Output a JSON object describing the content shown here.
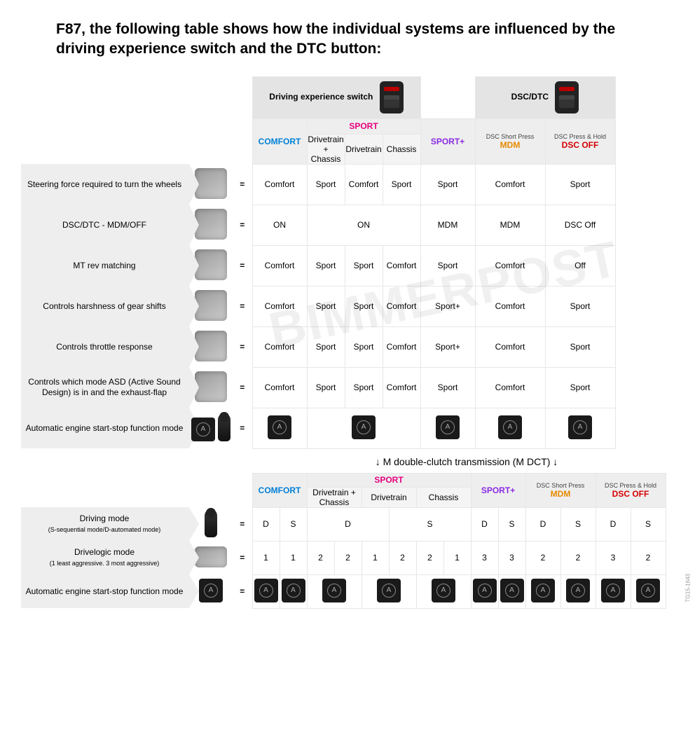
{
  "title": "F87, the following table shows how the individual systems are influenced by the driving experience switch and the DTC button:",
  "watermark": "BIMMERPOST",
  "sidecode": "TG15-1643",
  "dct_divider": "↓ M double-clutch transmission (M DCT) ↓",
  "header": {
    "driving_experience": "Driving experience switch",
    "dsc_dtc": "DSC/DTC",
    "comfort": "COMFORT",
    "sport": "SPORT",
    "sportplus": "SPORT+",
    "dsc_short_sup": "DSC Short Press",
    "mdm": "MDM",
    "dsc_hold_sup": "DSC Press & Hold",
    "dscoff": "DSC OFF",
    "sub_drivetrain_chassis": "Drivetrain + Chassis",
    "sub_drivetrain": "Drivetrain",
    "sub_chassis": "Chassis"
  },
  "rows": [
    {
      "label": "Steering force required to turn the wheels",
      "cells": [
        "Comfort",
        "Sport",
        "Comfort",
        "Sport",
        "Sport",
        "Comfort",
        "Sport"
      ]
    },
    {
      "label": "DSC/DTC - MDM/OFF",
      "cells": [
        "ON",
        "ON",
        "",
        "",
        "MDM",
        "MDM",
        "DSC Off"
      ],
      "merge_sport": true
    },
    {
      "label": "MT rev matching",
      "cells": [
        "Comfort",
        "Sport",
        "Sport",
        "Comfort",
        "Sport",
        "Comfort",
        "Off"
      ]
    },
    {
      "label": "Controls harshness of gear shifts",
      "cells": [
        "Comfort",
        "Sport",
        "Sport",
        "Comfort",
        "Sport+",
        "Comfort",
        "Sport"
      ]
    },
    {
      "label": "Controls throttle response",
      "cells": [
        "Comfort",
        "Sport",
        "Sport",
        "Comfort",
        "Sport+",
        "Comfort",
        "Sport"
      ]
    },
    {
      "label": "Controls which mode ASD (Active Sound Design) is in and the exhaust-flap",
      "cells": [
        "Comfort",
        "Sport",
        "Sport",
        "Comfort",
        "Sport",
        "Comfort",
        "Sport"
      ]
    },
    {
      "label": "Automatic engine start-stop function mode",
      "icons": true
    }
  ],
  "dct_rows": [
    {
      "label": "Driving mode",
      "sublabel": "(S-sequential mode/D-automated mode)",
      "pairs": [
        [
          "D",
          "S"
        ],
        [
          "D",
          ""
        ],
        [
          "",
          "S"
        ],
        [
          "D",
          "S"
        ],
        [
          "D",
          "S"
        ],
        [
          "D",
          "S"
        ]
      ],
      "sport_merge": true
    },
    {
      "label": "Drivelogic mode",
      "sublabel": "(1 least aggressive. 3 most aggressive)",
      "vals": [
        "1",
        "1",
        "2",
        "2",
        "1",
        "2",
        "2",
        "1",
        "3",
        "3",
        "2",
        "2",
        "3",
        "2"
      ]
    },
    {
      "label": "Automatic engine start-stop function mode",
      "icons": true
    }
  ]
}
